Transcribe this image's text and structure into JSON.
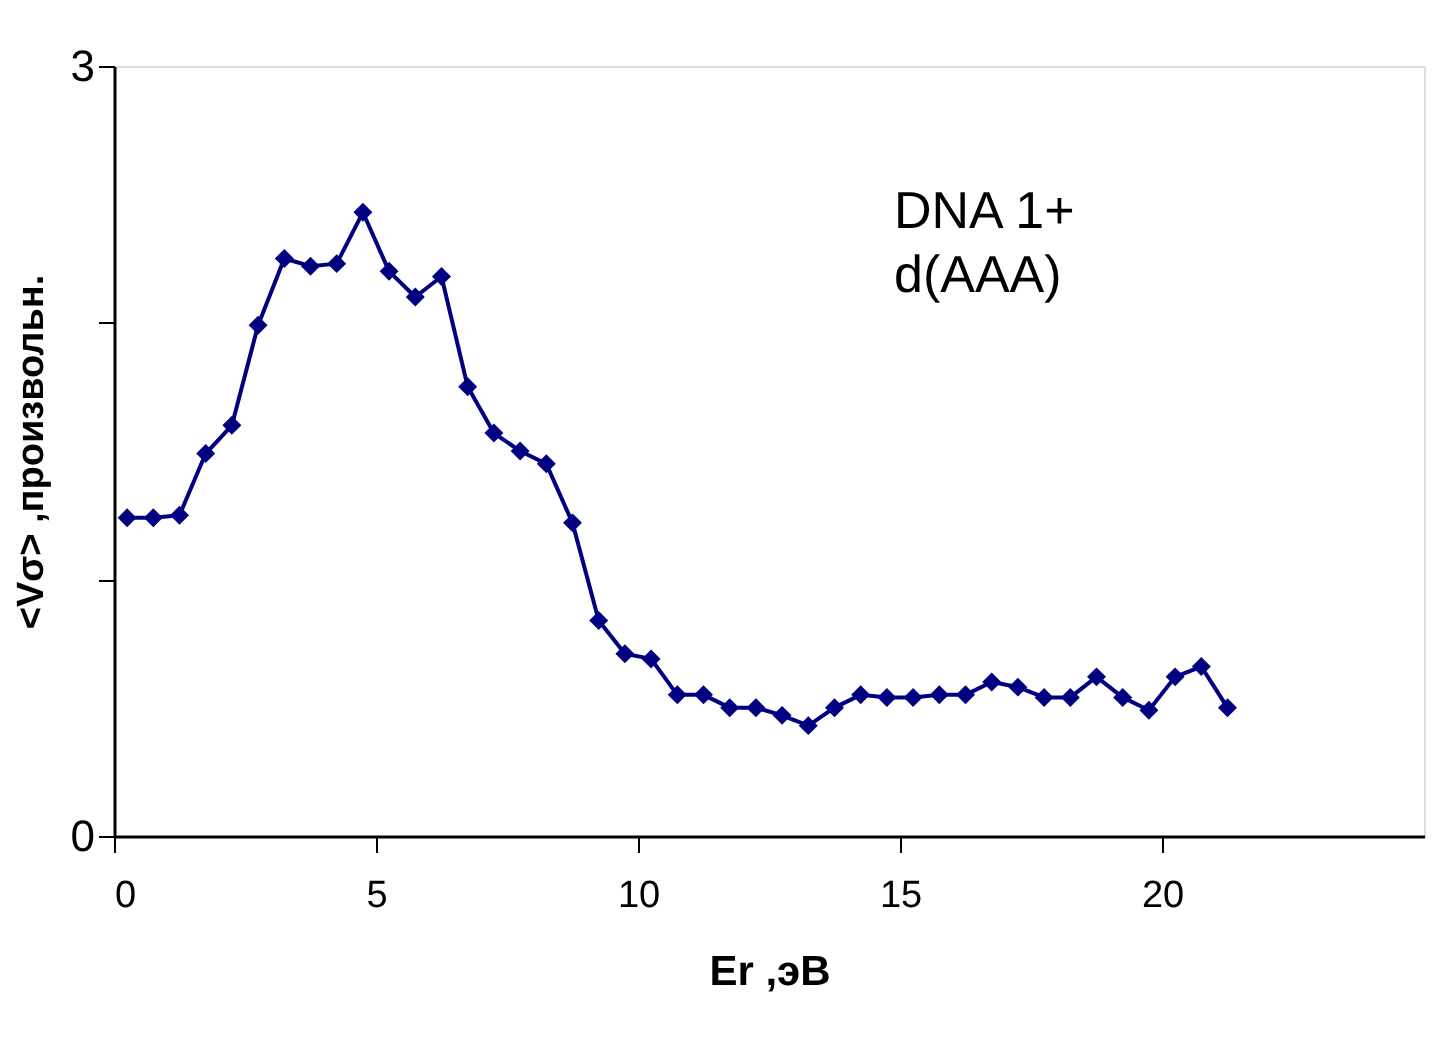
{
  "chart_data": {
    "type": "line",
    "x": [
      0.25,
      0.75,
      1.25,
      1.75,
      2.25,
      2.75,
      3.25,
      3.75,
      4.25,
      4.75,
      5.25,
      5.75,
      6.25,
      6.75,
      7.25,
      7.75,
      8.25,
      8.75,
      9.25,
      9.75,
      10.25,
      10.75,
      11.25,
      11.75,
      12.25,
      12.75,
      13.25,
      13.75,
      14.25,
      14.75,
      15.25,
      15.75,
      16.25,
      16.75,
      17.25,
      17.75,
      18.25,
      18.75,
      19.25,
      19.75,
      20.25,
      20.75,
      21.25
    ],
    "series": [
      {
        "color": "#000080",
        "values": [
          1.24,
          1.24,
          1.25,
          1.49,
          1.6,
          1.99,
          2.25,
          2.22,
          2.23,
          2.43,
          2.2,
          2.1,
          2.18,
          1.75,
          1.57,
          1.5,
          1.45,
          1.22,
          0.84,
          0.71,
          0.69,
          0.55,
          0.55,
          0.5,
          0.5,
          0.47,
          0.43,
          0.5,
          0.55,
          0.54,
          0.54,
          0.55,
          0.55,
          0.6,
          0.58,
          0.54,
          0.54,
          0.62,
          0.54,
          0.49,
          0.62,
          0.66,
          0.5
        ]
      }
    ],
    "xlim": [
      0,
      25
    ],
    "xticks": [
      0,
      5,
      10,
      15,
      20
    ],
    "ylim": [
      0,
      3
    ],
    "yticks": [
      0,
      {
        "value": 1,
        "label": null
      },
      {
        "value": 2,
        "label": null
      },
      3
    ],
    "xlabel": "Er ,эВ",
    "ylabel": "<Vσ> ,произвольн.",
    "annotations": [
      "DNA 1+\nd(AAA)"
    ],
    "marker": "diamond",
    "line_style": "solid",
    "grid": false
  }
}
